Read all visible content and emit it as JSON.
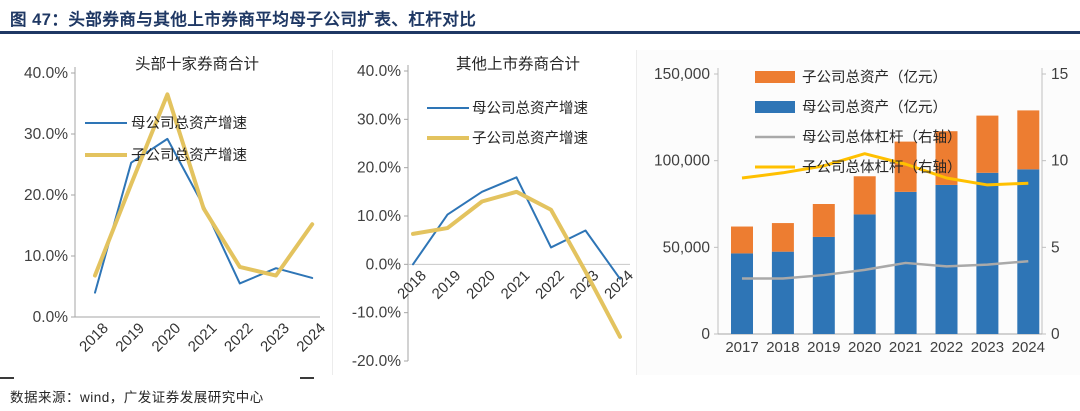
{
  "header": {
    "title": "图 47：头部券商与其他上市券商平均母子公司扩表、杠杆对比"
  },
  "footer": {
    "source": "数据来源：wind，广发证券发展研究中心"
  },
  "colors": {
    "title_navy": "#1F3864",
    "series_blue": "#2E75B6",
    "soft_gold": "#E3C35F",
    "bar_orange": "#ED7D31",
    "bright_gold": "#FFC000",
    "gray_line": "#A9A9A9",
    "axis_gray": "#A6A6A6"
  },
  "chart_data": [
    {
      "type": "line",
      "title": "头部十家券商合计",
      "categories": [
        "2018",
        "2019",
        "2020",
        "2021",
        "2022",
        "2023",
        "2024"
      ],
      "ylim": [
        0,
        40
      ],
      "yticks": [
        {
          "v": 0,
          "label": "0.0%"
        },
        {
          "v": 10,
          "label": "10.0%"
        },
        {
          "v": 20,
          "label": "20.0%"
        },
        {
          "v": 30,
          "label": "30.0%"
        },
        {
          "v": 40,
          "label": "40.0%"
        }
      ],
      "grid": false,
      "legend_position": "inside-top-left",
      "series": [
        {
          "key": "parent-asset-growth",
          "name": "母公司总资产增速",
          "color": "#2E75B6",
          "width": 2,
          "values": [
            4.0,
            25.3,
            29.2,
            18.2,
            5.5,
            8.0,
            6.4
          ]
        },
        {
          "key": "subsidiary-asset-growth",
          "name": "子公司总资产增速",
          "color": "#E3C35F",
          "width": 4,
          "values": [
            6.8,
            21.8,
            36.5,
            17.8,
            8.2,
            6.8,
            15.2
          ]
        }
      ]
    },
    {
      "type": "line",
      "title": "其他上市券商合计",
      "categories": [
        "2018",
        "2019",
        "2020",
        "2021",
        "2022",
        "2023",
        "2024"
      ],
      "ylim": [
        -20,
        40
      ],
      "yticks": [
        {
          "v": -20,
          "label": "-20.0%"
        },
        {
          "v": -10,
          "label": "-10.0%"
        },
        {
          "v": 0,
          "label": "0.0%"
        },
        {
          "v": 10,
          "label": "10.0%"
        },
        {
          "v": 20,
          "label": "20.0%"
        },
        {
          "v": 30,
          "label": "30.0%"
        },
        {
          "v": 40,
          "label": "40.0%"
        }
      ],
      "grid": false,
      "zero_line": true,
      "legend_position": "inside-top-left",
      "series": [
        {
          "key": "parent-asset-growth",
          "name": "母公司总资产增速",
          "color": "#2E75B6",
          "width": 2,
          "values": [
            0.0,
            10.3,
            15.0,
            18.0,
            3.5,
            7.0,
            -3.0
          ]
        },
        {
          "key": "subsidiary-asset-growth",
          "name": "子公司总资产增速",
          "color": "#E3C35F",
          "width": 4,
          "values": [
            6.3,
            7.5,
            13.0,
            15.0,
            11.3,
            -1.5,
            -15.0
          ]
        }
      ]
    },
    {
      "type": "combo",
      "categories": [
        "2017",
        "2018",
        "2019",
        "2020",
        "2021",
        "2022",
        "2023",
        "2024"
      ],
      "left_ylim": [
        0,
        150000
      ],
      "left_yticks": [
        {
          "v": 0,
          "label": "0"
        },
        {
          "v": 50000,
          "label": "50,000"
        },
        {
          "v": 100000,
          "label": "100,000"
        },
        {
          "v": 150000,
          "label": "150,000"
        }
      ],
      "right_ylim": [
        0,
        15
      ],
      "right_yticks": [
        {
          "v": 0,
          "label": "0"
        },
        {
          "v": 5,
          "label": "5"
        },
        {
          "v": 10,
          "label": "10"
        },
        {
          "v": 15,
          "label": "15"
        }
      ],
      "bar_series": [
        {
          "key": "parent-total-assets",
          "name": "母公司总资产（亿元）",
          "color": "#2E75B6",
          "axis": "left",
          "values": [
            46500,
            47500,
            56000,
            69000,
            82000,
            86000,
            93000,
            95000
          ]
        },
        {
          "key": "subsidiary-total-assets",
          "name": "子公司总资产（亿元）",
          "color": "#ED7D31",
          "axis": "left",
          "values": [
            15500,
            16500,
            19000,
            22000,
            29000,
            31000,
            33000,
            34000
          ]
        }
      ],
      "line_series": [
        {
          "key": "parent-leverage",
          "name": "母公司总体杠杆（右轴）",
          "color": "#A9A9A9",
          "axis": "right",
          "width": 2.5,
          "values": [
            3.2,
            3.2,
            3.4,
            3.7,
            4.1,
            3.9,
            4.0,
            4.2
          ]
        },
        {
          "key": "subsidiary-leverage",
          "name": "子公司总体杠杆（右轴）",
          "color": "#FFC000",
          "axis": "right",
          "width": 3,
          "values": [
            9.0,
            9.3,
            9.7,
            10.4,
            9.8,
            9.0,
            8.6,
            8.7
          ]
        }
      ],
      "legend_order": [
        "subsidiary-total-assets",
        "parent-total-assets",
        "parent-leverage",
        "subsidiary-leverage"
      ]
    }
  ]
}
